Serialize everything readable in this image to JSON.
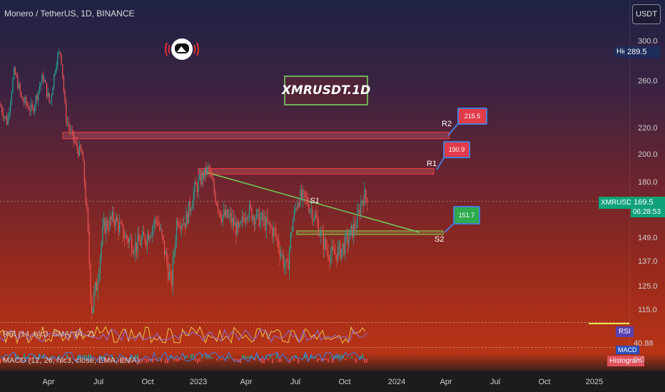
{
  "header": {
    "symbol_title": "Monero / TetherUS, 1D, BINANCE",
    "currency": "USDT"
  },
  "watermark": "XMRUSDT.1D",
  "price_axis": {
    "ticks": [
      "300.0",
      "260.0",
      "220.0",
      "200.0",
      "180.0",
      "149.0",
      "137.0",
      "125.0",
      "115.0"
    ],
    "high_label": "High",
    "high_value": "289.5",
    "current_label": "XMRUSDT",
    "current_price": "169.5",
    "countdown": "06:28:53"
  },
  "time_axis": {
    "ticks": [
      "Apr",
      "Jul",
      "Oct",
      "2023",
      "Apr",
      "Jul",
      "Oct",
      "2024",
      "Apr",
      "Jul",
      "Oct",
      "2025"
    ]
  },
  "levels": {
    "r2": {
      "label": "R2",
      "value": "215.5"
    },
    "r1": {
      "label": "R1",
      "value": "190.9"
    },
    "s1": {
      "label": "S1"
    },
    "s2": {
      "label": "S2",
      "value": "151.7"
    }
  },
  "indicators": {
    "rsi_label": "RSI (14, hlc3, SMA, 14, 2)",
    "rsi_badge": "RSI",
    "rsi_value": "40.88",
    "macd_label": "MACD (12, 26, hlc3, close, EMA, EMA)",
    "macd_badge": "MACD",
    "hist_badge": "Histogram",
    "macd_value": "0.0"
  },
  "colors": {
    "up": "#26a69a",
    "down": "#ef5350",
    "resistance": "#f23645",
    "support": "#7fd34f",
    "trend": "#6fcf5a"
  },
  "chart_data": {
    "type": "candlestick",
    "title": "Monero / TetherUS, 1D, BINANCE",
    "x_ticks": [
      "Apr",
      "Jul",
      "Oct",
      "2023",
      "Apr",
      "Jul",
      "Oct",
      "2024",
      "Apr",
      "Jul",
      "Oct",
      "2025"
    ],
    "y_ticks": [
      300,
      260,
      220,
      200,
      180,
      149,
      137,
      125,
      115
    ],
    "ylim": [
      108,
      310
    ],
    "current_price": 169.5,
    "high": 289.5,
    "levels": [
      {
        "name": "R2",
        "value": 215.5,
        "type": "resistance"
      },
      {
        "name": "R1",
        "value": 190.9,
        "type": "resistance"
      },
      {
        "name": "S2",
        "value": 151.7,
        "type": "support"
      }
    ],
    "series": [
      {
        "name": "XMRUSDT",
        "x": [
          "Apr",
          "Jul",
          "Oct",
          "2023",
          "Apr",
          "Jul",
          "Oct"
        ],
        "values": [
          255,
          140,
          150,
          155,
          160,
          170,
          145
        ]
      }
    ]
  }
}
